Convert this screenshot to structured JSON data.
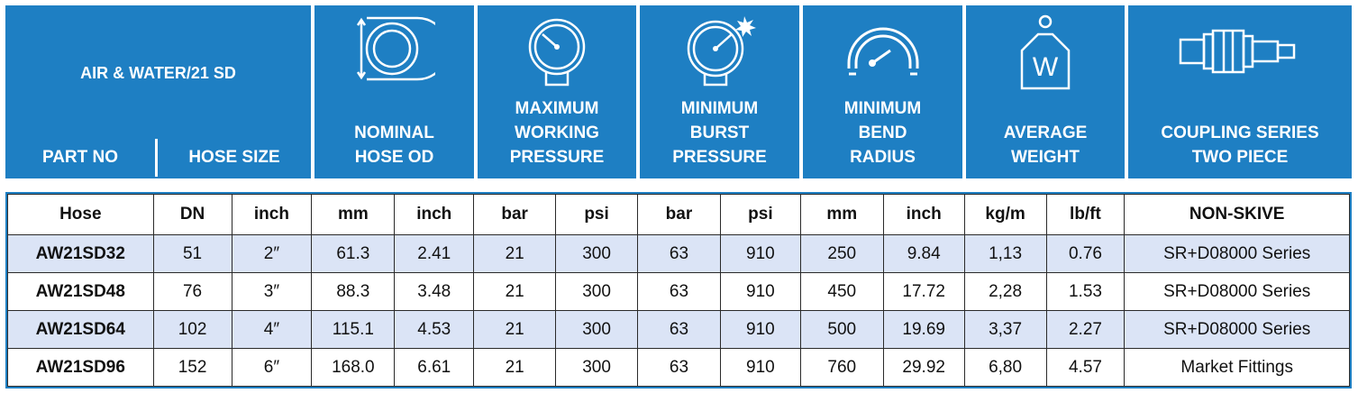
{
  "header": {
    "title": "AIR & WATER/21 SD",
    "part_no": "PART NO",
    "hose_size": "HOSE SIZE",
    "columns": [
      {
        "label": "NOMINAL\nHOSE OD",
        "icon": "hose-od-icon"
      },
      {
        "label": "MAXIMUM\nWORKING\nPRESSURE",
        "icon": "pressure-gauge-icon"
      },
      {
        "label": "MINIMUM\nBURST\nPRESSURE",
        "icon": "burst-gauge-icon"
      },
      {
        "label": "MINIMUM\nBEND\nRADIUS",
        "icon": "bend-radius-icon"
      },
      {
        "label": "AVERAGE\nWEIGHT",
        "icon": "weight-icon"
      },
      {
        "label": "COUPLING SERIES\nTWO PIECE",
        "icon": "coupling-icon"
      }
    ],
    "weight_letter": "W"
  },
  "table": {
    "units": [
      "Hose",
      "DN",
      "inch",
      "mm",
      "inch",
      "bar",
      "psi",
      "bar",
      "psi",
      "mm",
      "inch",
      "kg/m",
      "lb/ft",
      "NON-SKIVE"
    ],
    "rows": [
      [
        "AW21SD32",
        "51",
        "2″",
        "61.3",
        "2.41",
        "21",
        "300",
        "63",
        "910",
        "250",
        "9.84",
        "1,13",
        "0.76",
        "SR+D08000 Series"
      ],
      [
        "AW21SD48",
        "76",
        "3″",
        "88.3",
        "3.48",
        "21",
        "300",
        "63",
        "910",
        "450",
        "17.72",
        "2,28",
        "1.53",
        "SR+D08000 Series"
      ],
      [
        "AW21SD64",
        "102",
        "4″",
        "115.1",
        "4.53",
        "21",
        "300",
        "63",
        "910",
        "500",
        "19.69",
        "3,37",
        "2.27",
        "SR+D08000 Series"
      ],
      [
        "AW21SD96",
        "152",
        "6″",
        "168.0",
        "6.61",
        "21",
        "300",
        "63",
        "910",
        "760",
        "29.92",
        "6,80",
        "4.57",
        "Market Fittings"
      ]
    ]
  },
  "colors": {
    "header_bg": "#1e7fc3",
    "row_alt": "#dbe4f6"
  }
}
